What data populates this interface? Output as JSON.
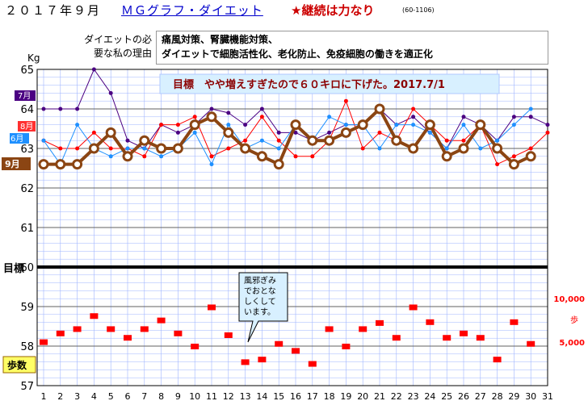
{
  "header": {
    "date": "２０１７年９月",
    "title": "ＭＧグラフ・ダイエット",
    "motto": "★継続は力なり",
    "code": "(60-1106)"
  },
  "reason": {
    "label_line1": "ダイエットの必",
    "label_line2": "要な私の理由",
    "line1": "痛風対策、腎臓機能対策、",
    "line2": "ダイエットで細胞活性化、老化防止、免疫細胞の働きを適正化"
  },
  "goal_banner": "目標　やや増えすぎたので６０キロに下げた。2017.7/1",
  "note": [
    "風邪ぎみ",
    "でおとな",
    "しくして",
    "います。"
  ],
  "colors": {
    "sep": "#8b4513",
    "aug": "#ff0000",
    "jul": "#4b0082",
    "jun": "#1e90ff",
    "steps": "#ff0000",
    "grid": "#9fb4ff"
  },
  "chart_data": {
    "type": "line",
    "ylabel": "Kg",
    "goal_label": "目標",
    "goal_value": 60,
    "y_ticks": [
      57,
      58,
      59,
      60,
      61,
      62,
      63,
      64,
      65
    ],
    "ylim": [
      57,
      65
    ],
    "x_ticks": [
      1,
      2,
      3,
      4,
      5,
      6,
      7,
      8,
      9,
      10,
      11,
      12,
      13,
      14,
      15,
      16,
      17,
      18,
      19,
      20,
      21,
      22,
      23,
      24,
      25,
      26,
      27,
      28,
      29,
      30,
      31
    ],
    "series": [
      {
        "name": "7月",
        "values": [
          64.0,
          64.0,
          64.0,
          65.0,
          64.4,
          63.2,
          63.0,
          63.6,
          63.4,
          63.6,
          64.0,
          63.9,
          63.6,
          64.0,
          63.4,
          63.4,
          63.2,
          63.4,
          63.6,
          63.6,
          64.0,
          63.6,
          63.8,
          63.4,
          63.0,
          63.8,
          63.6,
          63.2,
          63.8,
          63.8,
          63.6
        ]
      },
      {
        "name": "8月",
        "values": [
          63.2,
          63.0,
          63.0,
          63.4,
          63.0,
          63.0,
          62.8,
          63.6,
          63.6,
          63.8,
          62.8,
          63.0,
          63.2,
          63.8,
          63.2,
          62.8,
          62.8,
          63.2,
          64.2,
          63.0,
          63.4,
          63.2,
          64.0,
          63.6,
          63.2,
          63.2,
          63.6,
          62.6,
          62.8,
          63.0,
          63.4
        ]
      },
      {
        "name": "6月",
        "values": [
          63.2,
          62.6,
          63.6,
          63.0,
          62.8,
          63.0,
          63.0,
          62.8,
          63.0,
          63.4,
          62.6,
          63.6,
          63.0,
          63.2,
          63.0,
          63.6,
          63.2,
          63.8,
          63.6,
          63.6,
          63.0,
          63.6,
          63.6,
          63.4,
          63.0,
          63.6,
          63.0,
          63.2,
          63.6,
          64.0
        ]
      },
      {
        "name": "9月",
        "values": [
          62.6,
          62.6,
          62.6,
          63.0,
          63.4,
          62.8,
          63.2,
          63.0,
          63.0,
          63.6,
          63.8,
          63.4,
          63.0,
          62.8,
          62.6,
          63.6,
          63.2,
          63.2,
          63.4,
          63.6,
          64.0,
          63.2,
          63.0,
          63.6,
          62.8,
          63.0,
          63.6,
          63.0,
          62.6,
          62.8
        ]
      }
    ],
    "steps": {
      "name": "歩数",
      "unit": "歩",
      "y2_ticks": [
        "5,000",
        "10,000"
      ],
      "values": [
        5000,
        6000,
        6500,
        8000,
        6500,
        5500,
        6500,
        7500,
        6000,
        4500,
        9000,
        5800,
        2700,
        3000,
        4800,
        4000,
        2500,
        6500,
        4500,
        6500,
        7200,
        5500,
        9000,
        7300,
        5500,
        6000,
        5500,
        3000,
        7300,
        4800
      ]
    }
  }
}
